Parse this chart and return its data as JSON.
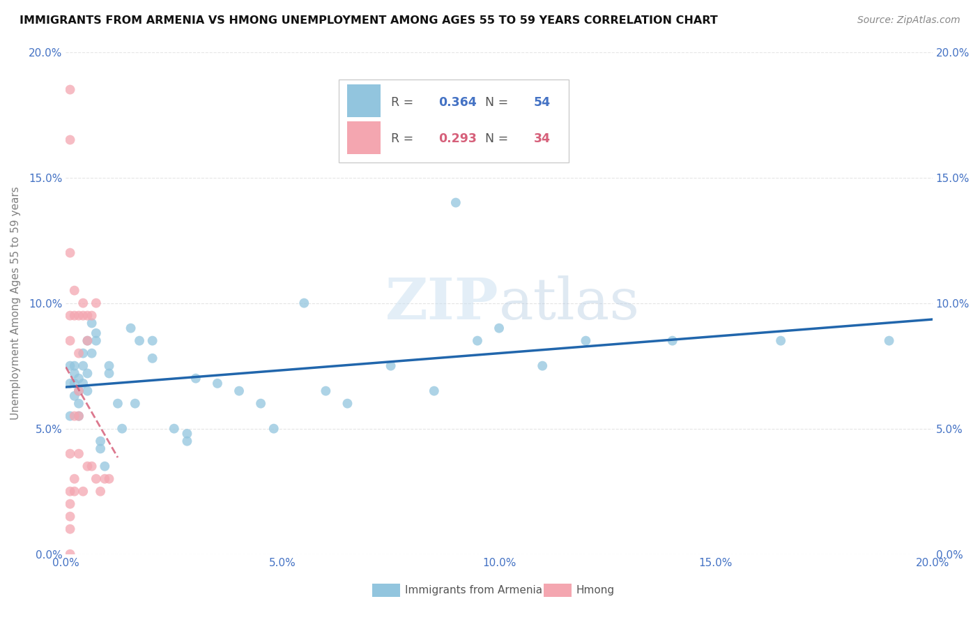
{
  "title": "IMMIGRANTS FROM ARMENIA VS HMONG UNEMPLOYMENT AMONG AGES 55 TO 59 YEARS CORRELATION CHART",
  "source": "Source: ZipAtlas.com",
  "ylabel": "Unemployment Among Ages 55 to 59 years",
  "legend_label1": "Immigrants from Armenia",
  "legend_label2": "Hmong",
  "R1": 0.364,
  "N1": 54,
  "R2": 0.293,
  "N2": 34,
  "color1": "#92c5de",
  "color2": "#f4a6b0",
  "trendline1_color": "#2166ac",
  "trendline2_color": "#d6607a",
  "watermark_zip": "ZIP",
  "watermark_atlas": "atlas",
  "xlim": [
    0,
    0.2
  ],
  "ylim": [
    0,
    0.2
  ],
  "xticks": [
    0,
    0.05,
    0.1,
    0.15,
    0.2
  ],
  "yticks": [
    0,
    0.05,
    0.1,
    0.15,
    0.2
  ],
  "scatter1_x": [
    0.001,
    0.001,
    0.001,
    0.002,
    0.002,
    0.002,
    0.002,
    0.003,
    0.003,
    0.003,
    0.003,
    0.004,
    0.004,
    0.004,
    0.005,
    0.005,
    0.005,
    0.006,
    0.006,
    0.007,
    0.007,
    0.008,
    0.008,
    0.009,
    0.01,
    0.01,
    0.012,
    0.013,
    0.015,
    0.016,
    0.017,
    0.02,
    0.02,
    0.025,
    0.028,
    0.028,
    0.03,
    0.035,
    0.04,
    0.045,
    0.048,
    0.055,
    0.06,
    0.065,
    0.075,
    0.085,
    0.09,
    0.095,
    0.1,
    0.11,
    0.12,
    0.14,
    0.165,
    0.19
  ],
  "scatter1_y": [
    0.068,
    0.075,
    0.055,
    0.072,
    0.068,
    0.075,
    0.063,
    0.07,
    0.065,
    0.06,
    0.055,
    0.08,
    0.075,
    0.068,
    0.085,
    0.072,
    0.065,
    0.092,
    0.08,
    0.088,
    0.085,
    0.045,
    0.042,
    0.035,
    0.075,
    0.072,
    0.06,
    0.05,
    0.09,
    0.06,
    0.085,
    0.085,
    0.078,
    0.05,
    0.048,
    0.045,
    0.07,
    0.068,
    0.065,
    0.06,
    0.05,
    0.1,
    0.065,
    0.06,
    0.075,
    0.065,
    0.14,
    0.085,
    0.09,
    0.075,
    0.085,
    0.085,
    0.085,
    0.085
  ],
  "scatter2_x": [
    0.001,
    0.001,
    0.001,
    0.001,
    0.001,
    0.001,
    0.001,
    0.001,
    0.001,
    0.001,
    0.001,
    0.002,
    0.002,
    0.002,
    0.002,
    0.002,
    0.003,
    0.003,
    0.003,
    0.003,
    0.003,
    0.004,
    0.004,
    0.004,
    0.005,
    0.005,
    0.005,
    0.006,
    0.006,
    0.007,
    0.007,
    0.008,
    0.009,
    0.01
  ],
  "scatter2_y": [
    0.185,
    0.165,
    0.12,
    0.095,
    0.085,
    0.04,
    0.025,
    0.02,
    0.015,
    0.01,
    0.0,
    0.105,
    0.095,
    0.055,
    0.03,
    0.025,
    0.095,
    0.08,
    0.065,
    0.055,
    0.04,
    0.1,
    0.095,
    0.025,
    0.095,
    0.085,
    0.035,
    0.095,
    0.035,
    0.1,
    0.03,
    0.025,
    0.03,
    0.03
  ],
  "trendline1_x": [
    0.0,
    0.2
  ],
  "trendline2_x_end": 0.012
}
